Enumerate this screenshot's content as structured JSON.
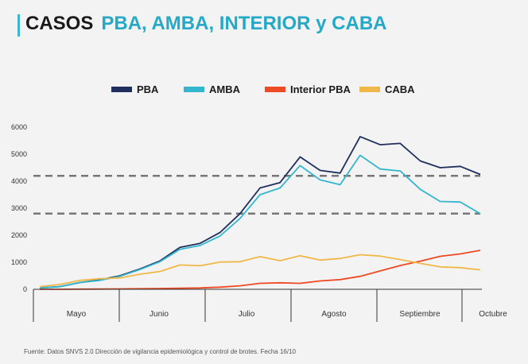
{
  "header": {
    "title_word1": "CASOS",
    "title_word2": "PBA, AMBA, INTERIOR y CABA"
  },
  "footer": {
    "source": "Fuente: Datos SNVS 2.0 Dirección de vigilancia epidemiológica y control de brotes. Fecha 16/10"
  },
  "chart_data": {
    "type": "line",
    "title": "CASOS PBA, AMBA, INTERIOR y CABA",
    "xlabel": "",
    "ylabel": "",
    "ylim": [
      0,
      6000
    ],
    "yticks": [
      0,
      1000,
      2000,
      3000,
      4000,
      5000,
      6000
    ],
    "x_month_labels": [
      "Mayo",
      "Junio",
      "Julio",
      "Agosto",
      "Septiembre",
      "Octubre"
    ],
    "legend_position": "top",
    "grid": false,
    "reference_lines": [
      4200,
      2800
    ],
    "series": [
      {
        "name": "PBA",
        "color": "#1f2f5e",
        "values": [
          50,
          100,
          250,
          350,
          500,
          750,
          1050,
          1550,
          1700,
          2100,
          2800,
          3750,
          3950,
          4900,
          4400,
          4300,
          5650,
          5350,
          5400,
          4750,
          4500,
          4550,
          4250
        ]
      },
      {
        "name": "AMBA",
        "color": "#35b6cf",
        "values": [
          50,
          100,
          250,
          330,
          480,
          730,
          1020,
          1480,
          1620,
          1970,
          2620,
          3500,
          3750,
          4580,
          4050,
          3870,
          4960,
          4450,
          4380,
          3700,
          3250,
          3230,
          2800
        ]
      },
      {
        "name": "Interior PBA",
        "color": "#ee4a24",
        "values": [
          0,
          0,
          5,
          10,
          15,
          20,
          30,
          40,
          50,
          80,
          130,
          220,
          240,
          220,
          310,
          360,
          480,
          680,
          880,
          1040,
          1220,
          1310,
          1440
        ]
      },
      {
        "name": "CABA",
        "color": "#f0b848",
        "values": [
          100,
          180,
          330,
          390,
          420,
          560,
          660,
          900,
          870,
          1010,
          1020,
          1210,
          1060,
          1240,
          1080,
          1140,
          1280,
          1230,
          1100,
          960,
          830,
          800,
          720
        ]
      }
    ]
  }
}
